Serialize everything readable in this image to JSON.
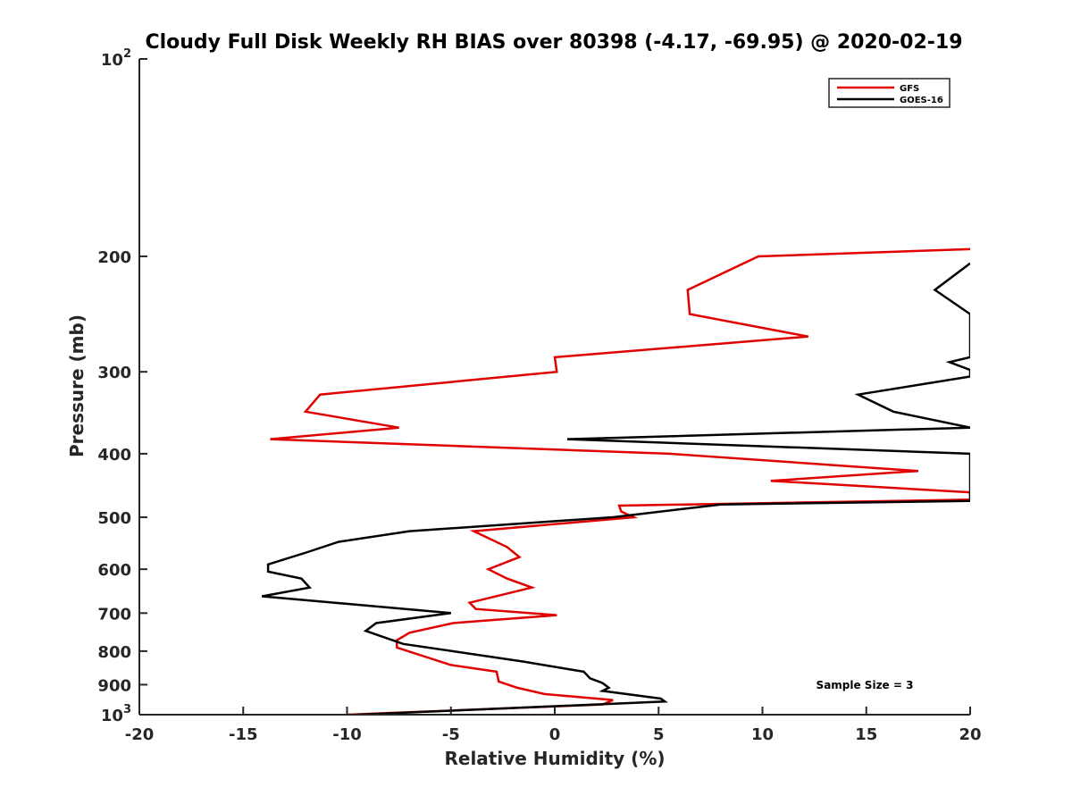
{
  "chart_data": {
    "type": "line",
    "title": "Cloudy Full Disk Weekly RH BIAS over 80398 (-4.17, -69.95) @ 2020-02-19",
    "xlabel": "Relative Humidity (%)",
    "ylabel": "Pressure (mb)",
    "xlim": [
      -20,
      20
    ],
    "ylim": [
      100,
      1000
    ],
    "yscale": "log",
    "y_reversed": true,
    "x_ticks": [
      "-20",
      "-15",
      "-10",
      "-5",
      "0",
      "5",
      "10",
      "15",
      "20"
    ],
    "y_ticks": [
      {
        "value": 100,
        "label": "10",
        "sup": "2"
      },
      {
        "value": 200,
        "label": "200"
      },
      {
        "value": 300,
        "label": "300"
      },
      {
        "value": 400,
        "label": "400"
      },
      {
        "value": 500,
        "label": "500"
      },
      {
        "value": 600,
        "label": "600"
      },
      {
        "value": 700,
        "label": "700"
      },
      {
        "value": 800,
        "label": "800"
      },
      {
        "value": 900,
        "label": "900"
      },
      {
        "value": 1000,
        "label": "10",
        "sup": "3"
      }
    ],
    "legend_position": "top-right",
    "annotation": "Sample Size = 3",
    "series": [
      {
        "name": "GFS",
        "color": "#e00000",
        "points": [
          [
            20,
            195
          ],
          [
            9.8,
            200
          ],
          [
            6.4,
            225
          ],
          [
            6.5,
            245
          ],
          [
            12.2,
            265
          ],
          [
            0,
            285
          ],
          [
            0.1,
            300
          ],
          [
            -11.3,
            325
          ],
          [
            -12,
            345
          ],
          [
            -7.5,
            365
          ],
          [
            -13.7,
            380
          ],
          [
            5.5,
            400
          ],
          [
            17.5,
            425
          ],
          [
            10.4,
            440
          ],
          [
            20,
            458
          ],
          [
            20,
            470
          ],
          [
            3.1,
            480
          ],
          [
            3.2,
            490
          ],
          [
            3.8,
            500
          ],
          [
            -3.9,
            525
          ],
          [
            -2.3,
            555
          ],
          [
            -1.7,
            575
          ],
          [
            -3.2,
            600
          ],
          [
            -2.3,
            620
          ],
          [
            -1.1,
            640
          ],
          [
            -4.1,
            675
          ],
          [
            -3.8,
            690
          ],
          [
            0.1,
            705
          ],
          [
            -4.9,
            725
          ],
          [
            -7,
            750
          ],
          [
            -7.6,
            770
          ],
          [
            -7.6,
            790
          ],
          [
            -5,
            840
          ],
          [
            -2.8,
            860
          ],
          [
            -2.7,
            890
          ],
          [
            -1.8,
            910
          ],
          [
            -0.5,
            930
          ],
          [
            2.8,
            950
          ],
          [
            2.3,
            965
          ],
          [
            -10,
            1000
          ]
        ]
      },
      {
        "name": "GOES-16",
        "color": "#000000",
        "points": [
          [
            20,
            205
          ],
          [
            18.3,
            225
          ],
          [
            20,
            245
          ],
          [
            20,
            285
          ],
          [
            19,
            290
          ],
          [
            20,
            298
          ],
          [
            20,
            305
          ],
          [
            14.6,
            325
          ],
          [
            16.3,
            345
          ],
          [
            20,
            365
          ],
          [
            0.6,
            380
          ],
          [
            20,
            400
          ],
          [
            20,
            472
          ],
          [
            8,
            478
          ],
          [
            2.8,
            500
          ],
          [
            -7,
            525
          ],
          [
            -10.4,
            545
          ],
          [
            -11.9,
            565
          ],
          [
            -13.8,
            590
          ],
          [
            -13.8,
            605
          ],
          [
            -12.2,
            620
          ],
          [
            -11.8,
            640
          ],
          [
            -14.1,
            660
          ],
          [
            -5,
            700
          ],
          [
            -8.6,
            725
          ],
          [
            -9.1,
            745
          ],
          [
            -7.3,
            780
          ],
          [
            -1.5,
            830
          ],
          [
            1.4,
            860
          ],
          [
            1.7,
            880
          ],
          [
            2.3,
            895
          ],
          [
            2.6,
            910
          ],
          [
            2.3,
            920
          ],
          [
            5.1,
            945
          ],
          [
            5.3,
            955
          ],
          [
            -9.5,
            1000
          ]
        ]
      }
    ]
  }
}
